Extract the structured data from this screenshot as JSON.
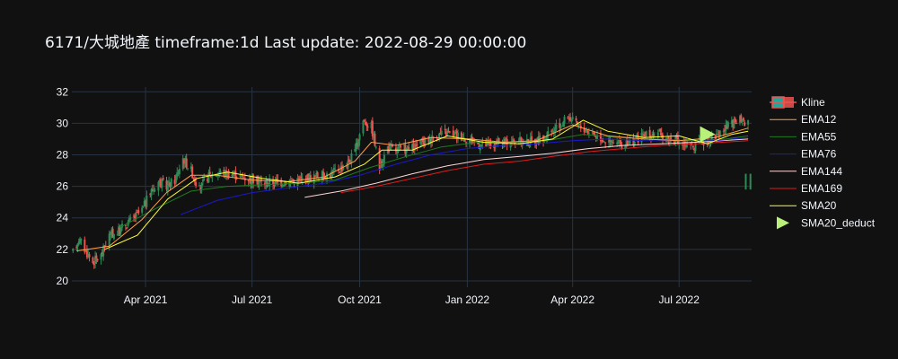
{
  "title": "6171/大城地產 timeframe:1d Last update: 2022-08-29 00:00:00",
  "chart_data": {
    "type": "candlestick",
    "x_ticks": [
      {
        "label": "Apr 2021",
        "date": "2021-04-01"
      },
      {
        "label": "Jul 2021",
        "date": "2021-07-01"
      },
      {
        "label": "Oct 2021",
        "date": "2021-10-01"
      },
      {
        "label": "Jan 2022",
        "date": "2022-01-01"
      },
      {
        "label": "Apr 2022",
        "date": "2022-04-01"
      },
      {
        "label": "Jul 2022",
        "date": "2022-07-01"
      }
    ],
    "y_ticks": [
      20,
      22,
      24,
      26,
      28,
      30,
      32
    ],
    "xlim": [
      "2021-01-28",
      "2022-09-01"
    ],
    "ylim": [
      19.6,
      32.3
    ],
    "grid": true,
    "legend_position": "right",
    "legend": [
      {
        "name": "Kline",
        "symbol": "candle",
        "color": "#26a69a"
      },
      {
        "name": "EMA12",
        "symbol": "line",
        "color": "#ff9f4a"
      },
      {
        "name": "EMA55",
        "symbol": "line",
        "color": "#1f7a1f"
      },
      {
        "name": "EMA76",
        "symbol": "line",
        "color": "#1a1acc"
      },
      {
        "name": "EMA144",
        "symbol": "line",
        "color": "#ffd6d6"
      },
      {
        "name": "EMA169",
        "symbol": "line",
        "color": "#e01b1b"
      },
      {
        "name": "SMA20",
        "symbol": "line",
        "color": "#ffff33"
      },
      {
        "name": "SMA20_deduct",
        "symbol": "triangle",
        "color": "#b8f07a"
      }
    ],
    "colors": {
      "up": "#2e8b57",
      "down": "#ef5350"
    },
    "price_path": [
      [
        "2021-01-29",
        21.8
      ],
      [
        "2021-02-03",
        22.7
      ],
      [
        "2021-02-08",
        22.0
      ],
      [
        "2021-02-15",
        21.2
      ],
      [
        "2021-02-22",
        21.6
      ],
      [
        "2021-03-01",
        22.9
      ],
      [
        "2021-03-08",
        23.1
      ],
      [
        "2021-03-15",
        23.6
      ],
      [
        "2021-03-22",
        24.0
      ],
      [
        "2021-03-29",
        24.5
      ],
      [
        "2021-04-05",
        25.6
      ],
      [
        "2021-04-12",
        26.3
      ],
      [
        "2021-04-19",
        26.0
      ],
      [
        "2021-04-26",
        26.4
      ],
      [
        "2021-05-03",
        27.8
      ],
      [
        "2021-05-10",
        27.0
      ],
      [
        "2021-05-17",
        25.8
      ],
      [
        "2021-05-24",
        26.6
      ],
      [
        "2021-05-31",
        26.9
      ],
      [
        "2021-06-14",
        26.8
      ],
      [
        "2021-06-28",
        26.5
      ],
      [
        "2021-07-12",
        26.2
      ],
      [
        "2021-07-26",
        26.3
      ],
      [
        "2021-08-09",
        26.4
      ],
      [
        "2021-08-23",
        26.6
      ],
      [
        "2021-09-06",
        26.8
      ],
      [
        "2021-09-20",
        27.4
      ],
      [
        "2021-09-27",
        28.2
      ],
      [
        "2021-10-04",
        30.2
      ],
      [
        "2021-10-11",
        29.8
      ],
      [
        "2021-10-18",
        27.2
      ],
      [
        "2021-10-25",
        28.5
      ],
      [
        "2021-11-01",
        28.3
      ],
      [
        "2021-11-15",
        28.4
      ],
      [
        "2021-11-29",
        29.0
      ],
      [
        "2021-12-13",
        29.4
      ],
      [
        "2021-12-27",
        29.2
      ],
      [
        "2022-01-10",
        28.7
      ],
      [
        "2022-01-24",
        28.6
      ],
      [
        "2022-02-07",
        28.9
      ],
      [
        "2022-02-21",
        28.8
      ],
      [
        "2022-03-07",
        29.0
      ],
      [
        "2022-03-21",
        29.8
      ],
      [
        "2022-03-28",
        30.5
      ],
      [
        "2022-04-04",
        29.9
      ],
      [
        "2022-04-18",
        29.4
      ],
      [
        "2022-05-02",
        28.8
      ],
      [
        "2022-05-16",
        28.6
      ],
      [
        "2022-05-30",
        29.2
      ],
      [
        "2022-06-13",
        29.3
      ],
      [
        "2022-06-27",
        28.9
      ],
      [
        "2022-07-11",
        28.5
      ],
      [
        "2022-07-25",
        28.9
      ],
      [
        "2022-08-08",
        29.6
      ],
      [
        "2022-08-22",
        30.2
      ],
      [
        "2022-08-29",
        30.1
      ]
    ],
    "ema12": [
      [
        "2021-02-01",
        21.9
      ],
      [
        "2021-03-01",
        22.2
      ],
      [
        "2021-03-29",
        23.9
      ],
      [
        "2021-04-19",
        25.6
      ],
      [
        "2021-05-10",
        26.7
      ],
      [
        "2021-06-01",
        26.7
      ],
      [
        "2021-07-01",
        26.4
      ],
      [
        "2021-08-01",
        26.3
      ],
      [
        "2021-09-01",
        26.6
      ],
      [
        "2021-09-27",
        27.6
      ],
      [
        "2021-10-11",
        28.8
      ],
      [
        "2021-11-01",
        28.6
      ],
      [
        "2021-12-01",
        29.1
      ],
      [
        "2022-01-03",
        29.0
      ],
      [
        "2022-02-01",
        28.8
      ],
      [
        "2022-03-01",
        28.9
      ],
      [
        "2022-04-01",
        29.9
      ],
      [
        "2022-05-01",
        29.2
      ],
      [
        "2022-06-01",
        29.0
      ],
      [
        "2022-07-01",
        28.9
      ],
      [
        "2022-08-01",
        29.1
      ],
      [
        "2022-08-29",
        29.7
      ]
    ],
    "sma20": [
      [
        "2021-02-25",
        22.0
      ],
      [
        "2021-03-25",
        22.9
      ],
      [
        "2021-04-20",
        25.2
      ],
      [
        "2021-05-15",
        26.5
      ],
      [
        "2021-06-10",
        26.9
      ],
      [
        "2021-07-10",
        26.5
      ],
      [
        "2021-08-10",
        26.2
      ],
      [
        "2021-09-10",
        26.6
      ],
      [
        "2021-10-05",
        27.4
      ],
      [
        "2021-10-20",
        28.3
      ],
      [
        "2021-11-15",
        28.3
      ],
      [
        "2021-12-15",
        29.2
      ],
      [
        "2022-01-15",
        28.8
      ],
      [
        "2022-02-15",
        28.7
      ],
      [
        "2022-03-15",
        29.0
      ],
      [
        "2022-04-10",
        30.2
      ],
      [
        "2022-05-01",
        29.5
      ],
      [
        "2022-06-01",
        29.1
      ],
      [
        "2022-07-01",
        29.2
      ],
      [
        "2022-07-25",
        28.7
      ],
      [
        "2022-08-15",
        29.3
      ],
      [
        "2022-08-29",
        29.5
      ]
    ],
    "ema55": [
      [
        "2021-03-10",
        23.4
      ],
      [
        "2021-04-10",
        24.6
      ],
      [
        "2021-05-10",
        25.7
      ],
      [
        "2021-06-10",
        26.0
      ],
      [
        "2021-07-10",
        26.1
      ],
      [
        "2021-08-10",
        26.2
      ],
      [
        "2021-09-10",
        26.4
      ],
      [
        "2021-10-10",
        27.2
      ],
      [
        "2021-11-10",
        27.9
      ],
      [
        "2021-12-10",
        28.5
      ],
      [
        "2022-01-10",
        28.8
      ],
      [
        "2022-02-10",
        28.8
      ],
      [
        "2022-03-10",
        28.9
      ],
      [
        "2022-04-10",
        29.3
      ],
      [
        "2022-05-10",
        29.1
      ],
      [
        "2022-06-10",
        29.0
      ],
      [
        "2022-07-10",
        28.9
      ],
      [
        "2022-08-10",
        29.0
      ],
      [
        "2022-08-29",
        29.2
      ]
    ],
    "ema76": [
      [
        "2021-05-01",
        24.2
      ],
      [
        "2021-06-01",
        25.1
      ],
      [
        "2021-07-01",
        25.6
      ],
      [
        "2021-08-01",
        25.9
      ],
      [
        "2021-09-01",
        26.2
      ],
      [
        "2021-10-01",
        26.7
      ],
      [
        "2021-11-01",
        27.4
      ],
      [
        "2021-12-01",
        28.0
      ],
      [
        "2022-01-01",
        28.4
      ],
      [
        "2022-02-01",
        28.6
      ],
      [
        "2022-03-01",
        28.7
      ],
      [
        "2022-04-01",
        28.9
      ],
      [
        "2022-05-01",
        29.0
      ],
      [
        "2022-06-01",
        28.9
      ],
      [
        "2022-07-01",
        28.9
      ],
      [
        "2022-08-01",
        28.9
      ],
      [
        "2022-08-29",
        29.1
      ]
    ],
    "ema144": [
      [
        "2021-08-15",
        25.3
      ],
      [
        "2021-09-15",
        25.7
      ],
      [
        "2021-10-15",
        26.2
      ],
      [
        "2021-11-15",
        26.8
      ],
      [
        "2021-12-15",
        27.3
      ],
      [
        "2022-01-15",
        27.7
      ],
      [
        "2022-02-15",
        27.9
      ],
      [
        "2022-03-15",
        28.1
      ],
      [
        "2022-04-15",
        28.4
      ],
      [
        "2022-05-15",
        28.6
      ],
      [
        "2022-06-15",
        28.7
      ],
      [
        "2022-07-15",
        28.8
      ],
      [
        "2022-08-29",
        29.0
      ]
    ],
    "ema169": [
      [
        "2021-09-15",
        25.6
      ],
      [
        "2021-10-15",
        26.0
      ],
      [
        "2021-11-15",
        26.5
      ],
      [
        "2021-12-15",
        27.0
      ],
      [
        "2022-01-15",
        27.4
      ],
      [
        "2022-02-15",
        27.6
      ],
      [
        "2022-03-15",
        27.9
      ],
      [
        "2022-04-15",
        28.2
      ],
      [
        "2022-05-15",
        28.4
      ],
      [
        "2022-06-15",
        28.6
      ],
      [
        "2022-07-15",
        28.7
      ],
      [
        "2022-08-29",
        28.9
      ]
    ],
    "sma20_deduct": {
      "date": "2022-07-25",
      "value": 29.3
    },
    "side_bars": [
      {
        "date": "2022-08-27",
        "low": 25.8,
        "high": 26.8
      },
      {
        "date": "2022-08-31",
        "low": 25.8,
        "high": 26.8
      }
    ]
  }
}
